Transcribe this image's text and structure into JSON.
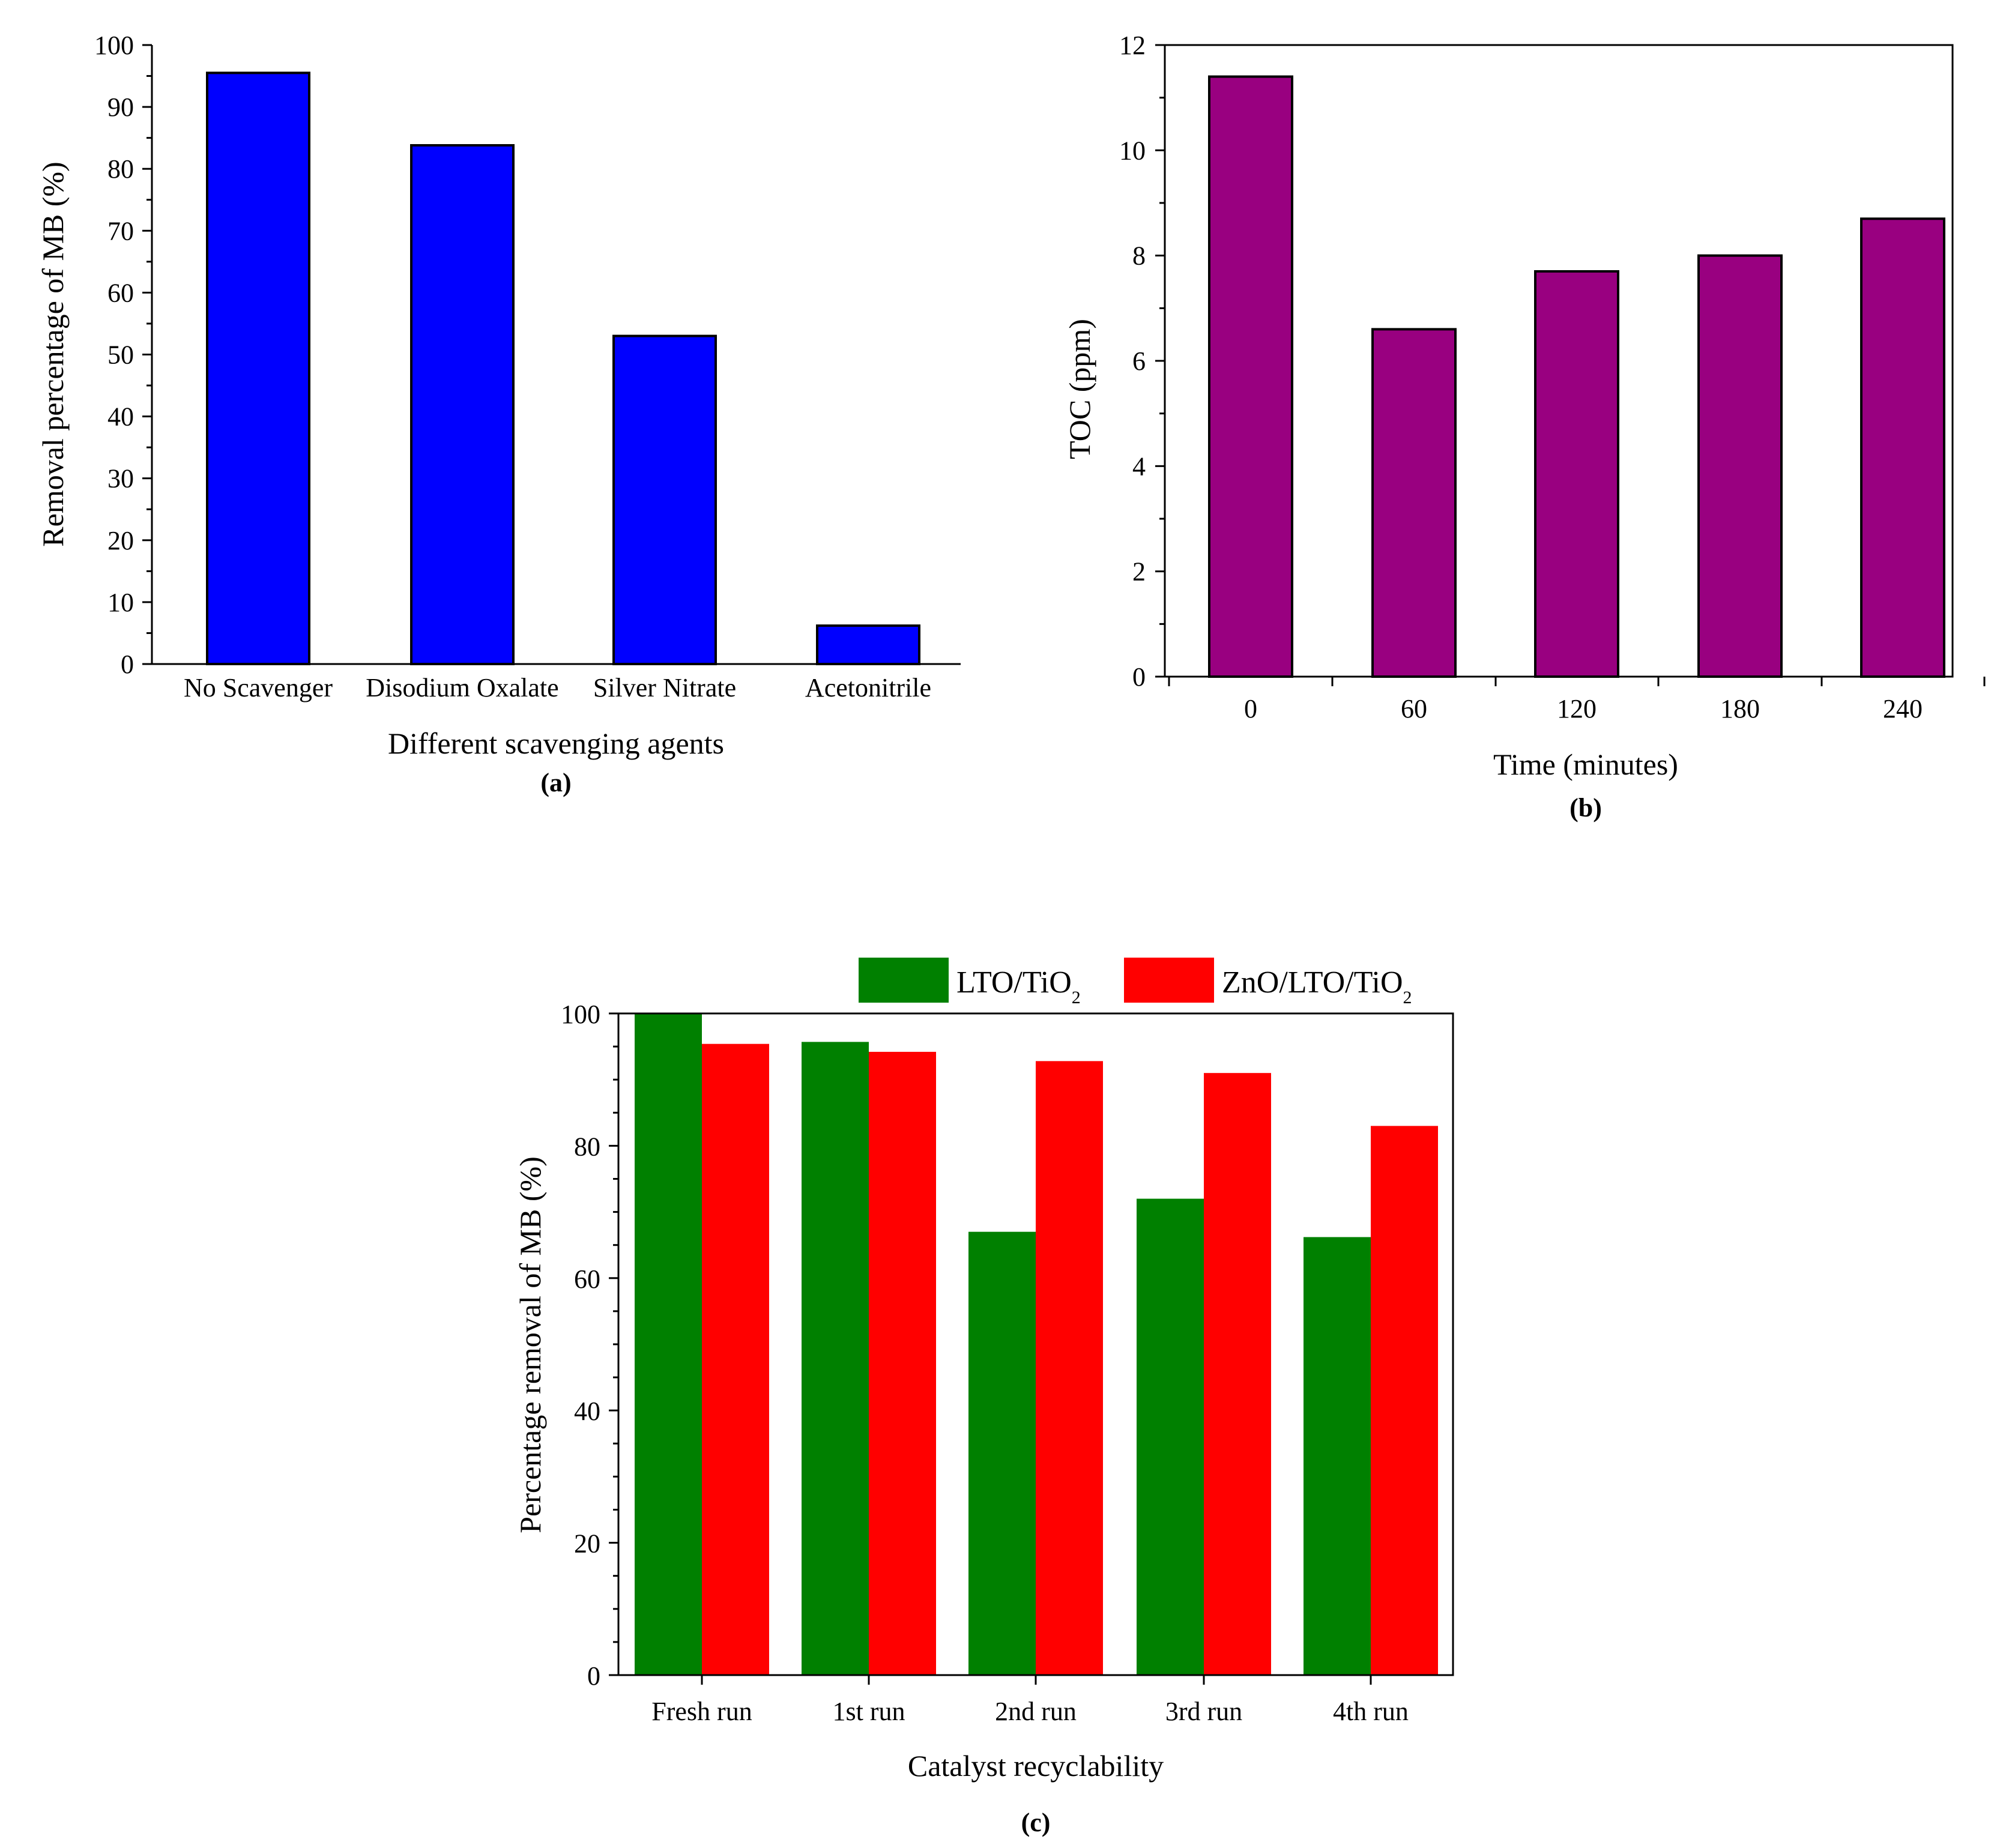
{
  "chart_data": [
    {
      "id": "a",
      "type": "bar",
      "panel_label": "(a)",
      "xlabel": "Different scavenging agents",
      "ylabel": "Removal percentage of MB (%)",
      "ylim": [
        0,
        100
      ],
      "yticks": [
        0,
        10,
        20,
        30,
        40,
        50,
        60,
        70,
        80,
        90,
        100
      ],
      "categories": [
        "No Scavenger",
        "Disodium Oxalate",
        "Silver Nitrate",
        "Acetonitrile"
      ],
      "values": [
        95.5,
        83.8,
        53.0,
        6.2
      ],
      "color": "#0000ff"
    },
    {
      "id": "b",
      "type": "bar",
      "panel_label": "(b)",
      "xlabel": "Time (minutes)",
      "ylabel": "TOC (ppm)",
      "ylim": [
        0,
        12
      ],
      "yticks": [
        0,
        2,
        4,
        6,
        8,
        10,
        12
      ],
      "categories": [
        "0",
        "60",
        "120",
        "180",
        "240"
      ],
      "values": [
        11.4,
        6.6,
        7.7,
        8.0,
        8.7
      ],
      "color": "#990080"
    },
    {
      "id": "c",
      "type": "bar",
      "panel_label": "(c)",
      "xlabel": "Catalyst recyclability",
      "ylabel": "Percentage removal of MB (%)",
      "ylim": [
        0,
        100
      ],
      "yticks": [
        0,
        20,
        40,
        60,
        80,
        100
      ],
      "categories": [
        "Fresh run",
        "1st run",
        "2nd run",
        "3rd run",
        "4th run"
      ],
      "series": [
        {
          "name": "LTO/TiO",
          "sub": "2",
          "values": [
            100,
            95.7,
            67.0,
            72.0,
            66.2
          ],
          "color": "#008000"
        },
        {
          "name": "ZnO/LTO/TiO",
          "sub": "2",
          "values": [
            95.4,
            94.2,
            92.8,
            91.0,
            83.0
          ],
          "color": "#ff0000"
        }
      ],
      "legend_position": "top"
    }
  ]
}
